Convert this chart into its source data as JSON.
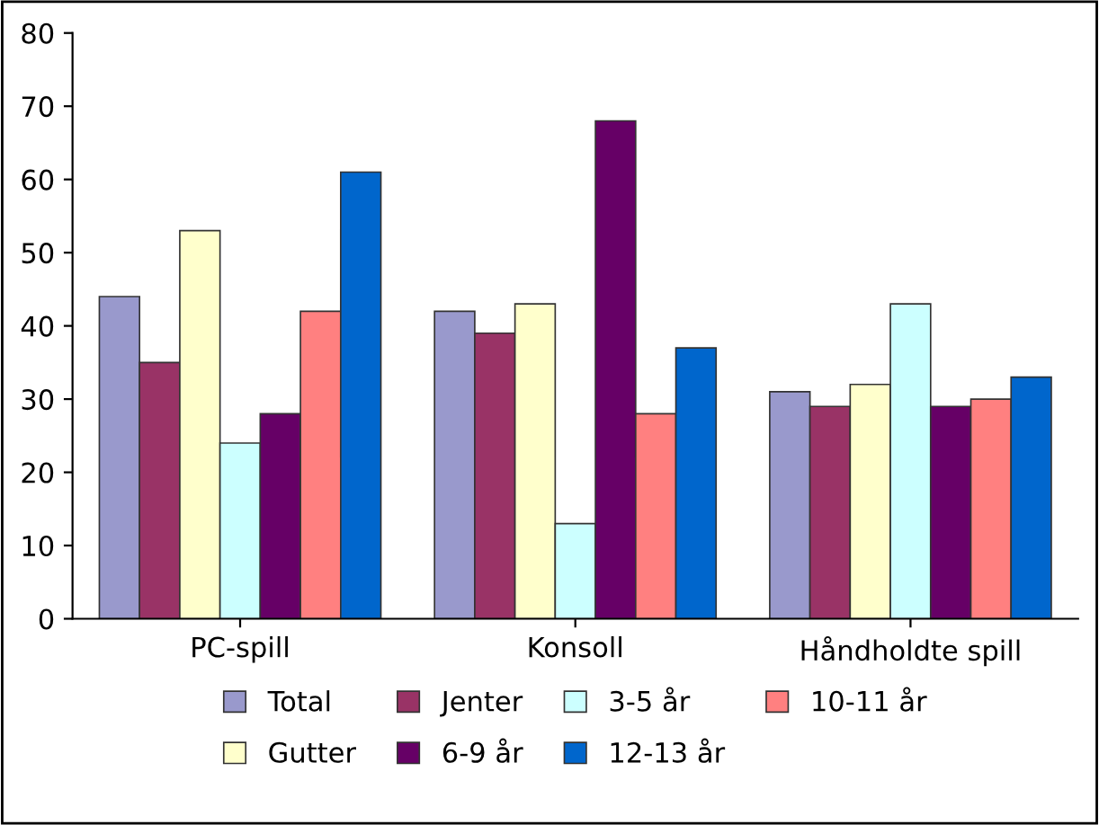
{
  "chart_data": {
    "type": "bar",
    "categories": [
      "PC-spill",
      "Konsoll",
      "Håndholdte spill"
    ],
    "series": [
      {
        "name": "Total",
        "color": "#9999cc",
        "values": [
          44,
          42,
          31
        ]
      },
      {
        "name": "Jenter",
        "color": "#993366",
        "values": [
          35,
          39,
          29
        ]
      },
      {
        "name": "Gutter",
        "color": "#ffffcc",
        "values": [
          53,
          43,
          32
        ]
      },
      {
        "name": "3-5 år",
        "color": "#ccffff",
        "values": [
          24,
          13,
          43
        ]
      },
      {
        "name": "6-9 år",
        "color": "#660066",
        "values": [
          28,
          68,
          29
        ]
      },
      {
        "name": "10-11 år",
        "color": "#ff8080",
        "values": [
          42,
          28,
          30
        ]
      },
      {
        "name": "12-13 år",
        "color": "#0066cc",
        "values": [
          61,
          37,
          33
        ]
      }
    ],
    "ylim": [
      0,
      80
    ],
    "yticks": [
      0,
      10,
      20,
      30,
      40,
      50,
      60,
      70,
      80
    ],
    "grid": false,
    "legend": "bottom"
  }
}
